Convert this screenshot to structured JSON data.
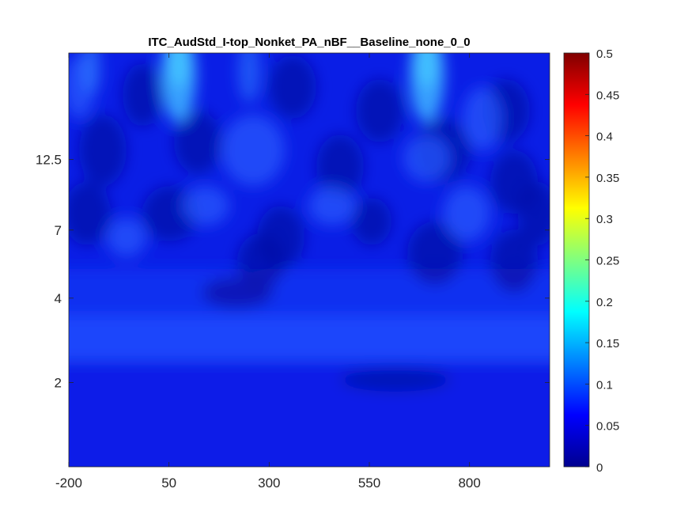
{
  "chart_data": {
    "type": "heatmap",
    "title": "ITC_AudStd_I-top_Nonket_PA_nBF__Baseline_none_0_0",
    "xlabel": "",
    "ylabel": "",
    "x_ticks": [
      "-200",
      "50",
      "300",
      "550",
      "800"
    ],
    "x_tick_values": [
      -200,
      50,
      300,
      550,
      800
    ],
    "xlim": [
      -200,
      1000
    ],
    "y_ticks": [
      "2",
      "4",
      "7",
      "12.5"
    ],
    "y_tick_values": [
      2,
      4,
      7,
      12.5
    ],
    "ylim": [
      1,
      30
    ],
    "y_scale": "log",
    "colorbar": {
      "ticks": [
        "0",
        "0.05",
        "0.1",
        "0.15",
        "0.2",
        "0.25",
        "0.3",
        "0.35",
        "0.4",
        "0.45",
        "0.5"
      ],
      "tick_values": [
        0,
        0.05,
        0.1,
        0.15,
        0.2,
        0.25,
        0.3,
        0.35,
        0.4,
        0.45,
        0.5
      ],
      "clim": [
        0,
        0.5
      ],
      "colormap": "jet"
    },
    "value_range_observed": [
      0.02,
      0.15
    ],
    "regions": [
      {
        "description": "baseline low-frequency band",
        "freq_range": [
          1,
          1.6
        ],
        "value": 0.045
      },
      {
        "description": "band around 2 Hz",
        "freq_range": [
          1.6,
          2.5
        ],
        "value": 0.08
      },
      {
        "description": "high-frequency peak near 50 ms",
        "time_center": 60,
        "freq_min": 15,
        "value": 0.15
      },
      {
        "description": "high-frequency peak near 650 ms",
        "time_center": 650,
        "freq_min": 15,
        "value": 0.15
      }
    ],
    "grid": false,
    "legend": "none"
  }
}
